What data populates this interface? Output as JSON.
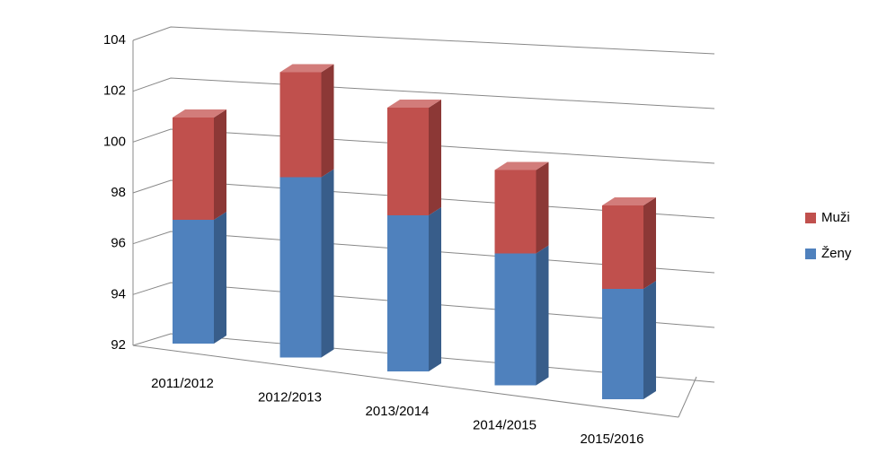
{
  "chart_data": {
    "type": "bar3d_stacked",
    "categories": [
      "2011/2012",
      "2012/2013",
      "2013/2014",
      "2014/2015",
      "2015/2016"
    ],
    "series": [
      {
        "name": "Ženy",
        "color": "#4f81bd",
        "side": "#385d8a",
        "top": "#7ea3d3",
        "values": [
          96.6,
          98.7,
          97.8,
          96.9,
          96.1
        ]
      },
      {
        "name": "Muži",
        "color": "#c0504d",
        "side": "#8c3836",
        "top": "#d27c7a",
        "values": [
          3.8,
          3.9,
          4.0,
          3.1,
          3.1
        ]
      }
    ],
    "ylim": [
      92,
      104
    ],
    "yticks": [
      92,
      94,
      96,
      98,
      100,
      102,
      104
    ],
    "grid": true,
    "legend": "right"
  }
}
